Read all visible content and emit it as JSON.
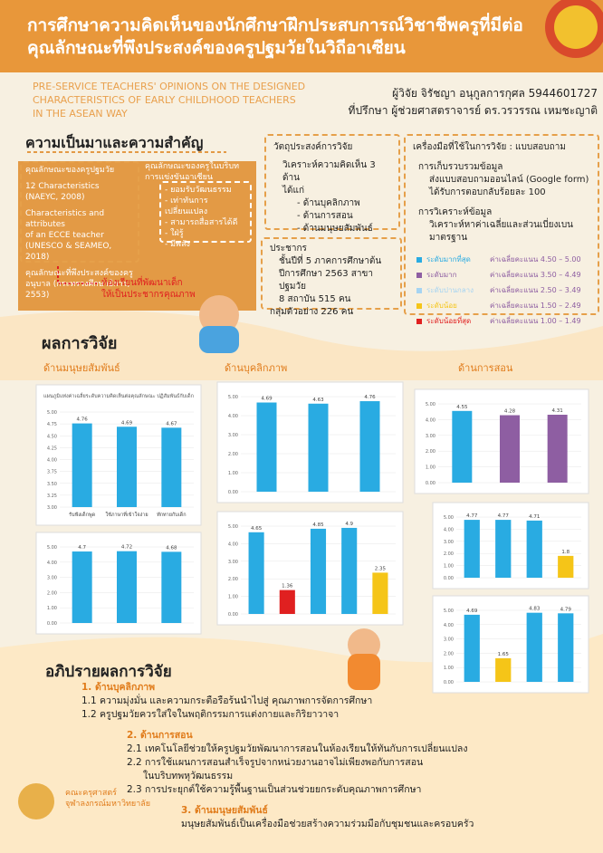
{
  "header": {
    "title_lines": [
      "การศึกษาความคิดเห็นของนักศึกษาฝึกประสบการณ์วิชาชีพครูที่มีต่อ",
      "คุณลักษณะที่พึงประสงค์ของครูปฐมวัยในวิถีอาเซียน"
    ],
    "english_lines": [
      "PRE-SERVICE TEACHERS' OPINIONS ON THE DESIGNED",
      "CHARACTERISTICS OF EARLY CHILDHOOD TEACHERS",
      "IN THE ASEAN WAY"
    ],
    "researcher": "ผู้วิจัย จิรัชญา อนุกูลการกุศล 5944601727",
    "advisor": "ที่ปรึกษา ผู้ช่วยศาสตราจารย์ ดร.วรวรรณ เหมชะญาติ"
  },
  "background": {
    "heading": "ความเป็นมาและความสำคัญ",
    "box1_title": "คุณลักษณะของครูปฐมวัย",
    "box1_lines": [
      "12 Characteristics",
      "(NAEYC, 2008)",
      "Characteristics and attributes",
      "of an ECCE teacher",
      "(UNESCO & SEAMEO, 2018)",
      "คุณลักษณะที่พึงประสงค์ของครู",
      "อนุบาล (กระทรวงศึกษาธิการ,",
      "2553)"
    ],
    "box2_title_lines": [
      "คุณลักษณะของครูในบริบท",
      "การแข่งขันอาเซียน"
    ],
    "box2_items": [
      "- ยอมรับวัฒนธรรม",
      "- เท่าทันการเปลี่ยนแปลง",
      "- สามารถสื่อสารได้ดี",
      "- ใฝ่รู้",
      "- มีพลัง"
    ],
    "result_lines": [
      "ห้องเรียนที่พัฒนาเด็ก",
      "ให้เป็นประชากรคุณภาพ"
    ]
  },
  "objectives": {
    "heading": "วัตถุประสงค์การวิจัย",
    "lines": [
      "วิเคราะห์ความคิดเห็น 3 ด้าน",
      "ได้แก่",
      "- ด้านบุคลิกภาพ",
      "- ด้านการสอน",
      "- ด้านมนุษยสัมพันธ์"
    ]
  },
  "population": {
    "lines": [
      "ประชากร",
      "ชั้นปีที่ 5 ภาคการศึกษาต้น",
      "ปีการศึกษา 2563 สาขาปฐมวัย",
      "8 สถาบัน 515 คน",
      "กลุ่มตัวอย่าง 226 คน"
    ]
  },
  "tools": {
    "heading": "เครื่องมือที่ใช้ในการวิจัย : แบบสอบถาม",
    "lines": [
      "การเก็บรวบรวมข้อมูล",
      "ส่งแบบสอบถามออนไลน์ (Google form)",
      "ได้รับการตอบกลับร้อยละ 100",
      "การวิเคราะห์ข้อมูล",
      "วิเคราะห์หาค่าเฉลี่ยและส่วนเบี่ยงเบนมาตรฐาน"
    ],
    "levels": [
      {
        "label": "ระดับมากที่สุด",
        "range": "ค่าเฉลี่ยคะแนน 4.50 – 5.00",
        "color": "#29abe2"
      },
      {
        "label": "ระดับมาก",
        "range": "ค่าเฉลี่ยคะแนน 3.50 – 4.49",
        "color": "#8e5ea2"
      },
      {
        "label": "ระดับปานกลาง",
        "range": "ค่าเฉลี่ยคะแนน 2.50 – 3.49",
        "color": "#a6d4f2"
      },
      {
        "label": "ระดับน้อย",
        "range": "ค่าเฉลี่ยคะแนน 1.50 – 2.49",
        "color": "#f5c518"
      },
      {
        "label": "ระดับน้อยที่สุด",
        "range": "ค่าเฉลี่ยคะแนน 1.00 – 1.49",
        "color": "#e02020"
      }
    ]
  },
  "results": {
    "heading": "ผลการวิจัย",
    "panel_headings": [
      "ด้านมนุษยสัมพันธ์",
      "ด้านบุคลิกภาพ",
      "ด้านการสอน"
    ]
  },
  "chart_data": [
    {
      "type": "bar",
      "title": "แผนภูมิแท่งค่าเฉลี่ยระดับความคิดเห็นต่อคุณลักษณะ ปฏิสัมพันธ์กับเด็ก",
      "categories": [
        "รับฟังเด็กพูด",
        "ใช้ภาษาที่เข้าใจง่าย",
        "ทักทายกับเด็ก"
      ],
      "values": [
        4.76,
        4.69,
        4.67
      ],
      "colors": [
        "#29abe2",
        "#29abe2",
        "#29abe2"
      ],
      "ylim": [
        3,
        5
      ],
      "yticks": [
        {
          "value": 3,
          "label": "3.00"
        },
        {
          "value": 3.25,
          "label": "3.25"
        },
        {
          "value": 3.5,
          "label": "3.50"
        },
        {
          "value": 3.75,
          "label": "3.75"
        },
        {
          "value": 4,
          "label": "4.00"
        },
        {
          "value": 4.25,
          "label": "4.25"
        },
        {
          "value": 4.5,
          "label": "4.50"
        },
        {
          "value": 4.75,
          "label": "4.75"
        },
        {
          "value": 5,
          "label": "5.00"
        }
      ]
    },
    {
      "type": "bar",
      "values": [
        4.7,
        4.72,
        4.68
      ],
      "colors": [
        "#29abe2",
        "#29abe2",
        "#29abe2"
      ],
      "ylim": [
        0,
        5
      ],
      "yticks": [
        {
          "value": 0,
          "label": "0.00"
        },
        {
          "value": 1,
          "label": "1.00"
        },
        {
          "value": 2,
          "label": "2.00"
        },
        {
          "value": 3,
          "label": "3.00"
        },
        {
          "value": 4,
          "label": "4.00"
        },
        {
          "value": 5,
          "label": "5.00"
        }
      ]
    },
    {
      "type": "bar",
      "values": [
        4.69,
        4.63,
        4.76
      ],
      "colors": [
        "#29abe2",
        "#29abe2",
        "#29abe2"
      ],
      "ylim": [
        0,
        5
      ],
      "yticks": [
        {
          "value": 0,
          "label": "0.00"
        },
        {
          "value": 1,
          "label": "1.00"
        },
        {
          "value": 2,
          "label": "2.00"
        },
        {
          "value": 3,
          "label": "3.00"
        },
        {
          "value": 4,
          "label": "4.00"
        },
        {
          "value": 5,
          "label": "5.00"
        }
      ]
    },
    {
      "type": "bar",
      "values": [
        4.65,
        1.36,
        4.85,
        4.9,
        2.35
      ],
      "colors": [
        "#29abe2",
        "#e02020",
        "#29abe2",
        "#29abe2",
        "#f5c518"
      ],
      "ylim": [
        0,
        5
      ],
      "yticks": [
        {
          "value": 0,
          "label": "0.00"
        },
        {
          "value": 1,
          "label": "1.00"
        },
        {
          "value": 2,
          "label": "2.00"
        },
        {
          "value": 3,
          "label": "3.00"
        },
        {
          "value": 4,
          "label": "4.00"
        },
        {
          "value": 5,
          "label": "5.00"
        }
      ]
    },
    {
      "type": "bar",
      "values": [
        4.55,
        4.28,
        4.31
      ],
      "colors": [
        "#29abe2",
        "#8e5ea2",
        "#8e5ea2"
      ],
      "ylim": [
        0,
        5
      ],
      "yticks": [
        {
          "value": 0,
          "label": "0.00"
        },
        {
          "value": 1,
          "label": "1.00"
        },
        {
          "value": 2,
          "label": "2.00"
        },
        {
          "value": 3,
          "label": "3.00"
        },
        {
          "value": 4,
          "label": "4.00"
        },
        {
          "value": 5,
          "label": "5.00"
        }
      ]
    },
    {
      "type": "bar",
      "values": [
        4.77,
        4.77,
        4.71,
        1.8
      ],
      "colors": [
        "#29abe2",
        "#29abe2",
        "#29abe2",
        "#f5c518"
      ],
      "ylim": [
        0,
        5
      ],
      "yticks": [
        {
          "value": 0,
          "label": "0.00"
        },
        {
          "value": 1,
          "label": "1.00"
        },
        {
          "value": 2,
          "label": "2.00"
        },
        {
          "value": 3,
          "label": "3.00"
        },
        {
          "value": 4,
          "label": "4.00"
        },
        {
          "value": 5,
          "label": "5.00"
        }
      ]
    },
    {
      "type": "bar",
      "values": [
        4.69,
        1.65,
        4.83,
        4.79
      ],
      "colors": [
        "#29abe2",
        "#f5c518",
        "#29abe2",
        "#29abe2"
      ],
      "ylim": [
        0,
        5
      ],
      "yticks": [
        {
          "value": 0,
          "label": "0.00"
        },
        {
          "value": 1,
          "label": "1.00"
        },
        {
          "value": 2,
          "label": "2.00"
        },
        {
          "value": 3,
          "label": "3.00"
        },
        {
          "value": 4,
          "label": "4.00"
        },
        {
          "value": 5,
          "label": "5.00"
        }
      ]
    }
  ],
  "discussion": {
    "heading": "อภิปรายผลการวิจัย",
    "items": [
      {
        "title": "1. ด้านบุคลิกภาพ",
        "lines": [
          "1.1 ความมุ่งมั่น และความกระตือรือร้นนำไปสู่ คุณภาพการจัดการศึกษา",
          "1.2 ครูปฐมวัยควรใส่ใจในพฤติกรรมการแต่งกายและกิริยาวาจา"
        ]
      },
      {
        "title": "2. ด้านการสอน",
        "lines": [
          "2.1 เทคโนโลยีช่วยให้ครูปฐมวัยพัฒนาการสอนในห้องเรียนให้ทันกับการเปลี่ยนแปลง",
          "2.2 การใช้แผนการสอนสำเร็จรูปจากหน่วยงานอาจไม่เพียงพอกับการสอน",
          "ในบริบทพหุวัฒนธรรม",
          "2.3 การประยุกต์ใช้ความรู้พื้นฐานเป็นส่วนช่วยยกระดับคุณภาพการศึกษา"
        ]
      },
      {
        "title": "3. ด้านมนุษยสัมพันธ์",
        "lines": [
          "มนุษยสัมพันธ์เป็นเครื่องมือช่วยสร้างความร่วมมือกับชุมชนและครอบครัว"
        ]
      }
    ]
  },
  "footer": {
    "lines": [
      "คณะครุศาสตร์",
      "จุฬาลงกรณ์มหาวิทยาลัย"
    ]
  }
}
